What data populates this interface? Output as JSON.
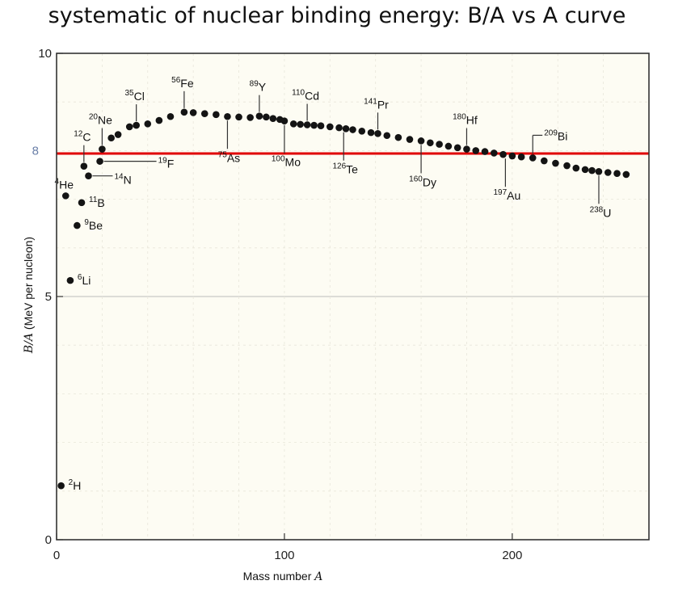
{
  "title": "systematic of nuclear binding energy: B/A vs A curve",
  "chart_data": {
    "type": "scatter",
    "title": "systematic of nuclear binding energy: B/A vs A curve",
    "xlabel_text": "Mass number ",
    "xlabel_var": "A",
    "ylabel_var": "B/A",
    "ylabel_text": " (MeV per nucleon)",
    "xlim": [
      0,
      260
    ],
    "ylim": [
      0,
      10
    ],
    "xticks": [
      0,
      100,
      200
    ],
    "yticks": [
      0,
      5,
      10
    ],
    "highlight_tick": 8,
    "reference_line": {
      "y": 7.94,
      "color": "#e00000"
    },
    "points": [
      {
        "x": 2,
        "y": 1.11
      },
      {
        "x": 4,
        "y": 7.07
      },
      {
        "x": 6,
        "y": 5.33
      },
      {
        "x": 9,
        "y": 6.46
      },
      {
        "x": 11,
        "y": 6.93
      },
      {
        "x": 12,
        "y": 7.68
      },
      {
        "x": 14,
        "y": 7.48
      },
      {
        "x": 19,
        "y": 7.78
      },
      {
        "x": 20,
        "y": 8.03
      },
      {
        "x": 24,
        "y": 8.26
      },
      {
        "x": 27,
        "y": 8.33
      },
      {
        "x": 32,
        "y": 8.49
      },
      {
        "x": 35,
        "y": 8.52
      },
      {
        "x": 40,
        "y": 8.55
      },
      {
        "x": 45,
        "y": 8.62
      },
      {
        "x": 50,
        "y": 8.7
      },
      {
        "x": 56,
        "y": 8.79
      },
      {
        "x": 60,
        "y": 8.78
      },
      {
        "x": 65,
        "y": 8.76
      },
      {
        "x": 70,
        "y": 8.74
      },
      {
        "x": 75,
        "y": 8.7
      },
      {
        "x": 80,
        "y": 8.69
      },
      {
        "x": 85,
        "y": 8.68
      },
      {
        "x": 89,
        "y": 8.71
      },
      {
        "x": 92,
        "y": 8.69
      },
      {
        "x": 95,
        "y": 8.66
      },
      {
        "x": 98,
        "y": 8.64
      },
      {
        "x": 100,
        "y": 8.61
      },
      {
        "x": 104,
        "y": 8.55
      },
      {
        "x": 107,
        "y": 8.54
      },
      {
        "x": 110,
        "y": 8.53
      },
      {
        "x": 113,
        "y": 8.52
      },
      {
        "x": 116,
        "y": 8.51
      },
      {
        "x": 120,
        "y": 8.49
      },
      {
        "x": 124,
        "y": 8.47
      },
      {
        "x": 127,
        "y": 8.45
      },
      {
        "x": 130,
        "y": 8.43
      },
      {
        "x": 134,
        "y": 8.4
      },
      {
        "x": 138,
        "y": 8.37
      },
      {
        "x": 141,
        "y": 8.35
      },
      {
        "x": 145,
        "y": 8.31
      },
      {
        "x": 150,
        "y": 8.27
      },
      {
        "x": 155,
        "y": 8.23
      },
      {
        "x": 160,
        "y": 8.2
      },
      {
        "x": 164,
        "y": 8.16
      },
      {
        "x": 168,
        "y": 8.13
      },
      {
        "x": 172,
        "y": 8.09
      },
      {
        "x": 176,
        "y": 8.06
      },
      {
        "x": 180,
        "y": 8.03
      },
      {
        "x": 184,
        "y": 8.0
      },
      {
        "x": 188,
        "y": 7.98
      },
      {
        "x": 192,
        "y": 7.95
      },
      {
        "x": 196,
        "y": 7.92
      },
      {
        "x": 200,
        "y": 7.89
      },
      {
        "x": 204,
        "y": 7.87
      },
      {
        "x": 209,
        "y": 7.85
      },
      {
        "x": 214,
        "y": 7.79
      },
      {
        "x": 219,
        "y": 7.74
      },
      {
        "x": 224,
        "y": 7.69
      },
      {
        "x": 228,
        "y": 7.64
      },
      {
        "x": 232,
        "y": 7.61
      },
      {
        "x": 235,
        "y": 7.59
      },
      {
        "x": 238,
        "y": 7.57
      },
      {
        "x": 242,
        "y": 7.55
      },
      {
        "x": 246,
        "y": 7.53
      },
      {
        "x": 250,
        "y": 7.51
      }
    ],
    "annotations": [
      {
        "mass": "2",
        "symbol": "H",
        "x": 2,
        "y": 1.11,
        "side": "right"
      },
      {
        "mass": "4",
        "symbol": "He",
        "x": 4,
        "y": 7.07,
        "side": "above"
      },
      {
        "mass": "6",
        "symbol": "Li",
        "x": 6,
        "y": 5.33,
        "side": "right"
      },
      {
        "mass": "9",
        "symbol": "Be",
        "x": 9,
        "y": 6.46,
        "side": "right"
      },
      {
        "mass": "11",
        "symbol": "B",
        "x": 11,
        "y": 6.93,
        "side": "right"
      },
      {
        "mass": "12",
        "symbol": "C",
        "x": 12,
        "y": 7.68,
        "side": "above-leader"
      },
      {
        "mass": "14",
        "symbol": "N",
        "x": 14,
        "y": 7.48,
        "side": "right-leader"
      },
      {
        "mass": "19",
        "symbol": "F",
        "x": 19,
        "y": 7.78,
        "side": "right-leader-long"
      },
      {
        "mass": "20",
        "symbol": "Ne",
        "x": 20,
        "y": 8.03,
        "side": "above-leader"
      },
      {
        "mass": "35",
        "symbol": "Cl",
        "x": 35,
        "y": 8.52,
        "side": "above-leader"
      },
      {
        "mass": "56",
        "symbol": "Fe",
        "x": 56,
        "y": 8.79,
        "side": "above-leader"
      },
      {
        "mass": "75",
        "symbol": "As",
        "x": 75,
        "y": 8.7,
        "side": "below-leader"
      },
      {
        "mass": "89",
        "symbol": "Y",
        "x": 89,
        "y": 8.71,
        "side": "above-leader"
      },
      {
        "mass": "100",
        "symbol": "Mo",
        "x": 100,
        "y": 8.61,
        "side": "below-leader"
      },
      {
        "mass": "110",
        "symbol": "Cd",
        "x": 110,
        "y": 8.53,
        "side": "above-leader"
      },
      {
        "mass": "126",
        "symbol": "Te",
        "x": 126,
        "y": 8.46,
        "side": "below-leader"
      },
      {
        "mass": "141",
        "symbol": "Pr",
        "x": 141,
        "y": 8.35,
        "side": "above-leader"
      },
      {
        "mass": "160",
        "symbol": "Dy",
        "x": 160,
        "y": 8.2,
        "side": "below-leader"
      },
      {
        "mass": "180",
        "symbol": "Hf",
        "x": 180,
        "y": 8.03,
        "side": "above-leader"
      },
      {
        "mass": "197",
        "symbol": "Au",
        "x": 197,
        "y": 7.92,
        "side": "below-leader"
      },
      {
        "mass": "209",
        "symbol": "Bi",
        "x": 209,
        "y": 7.85,
        "side": "above-right-leader"
      },
      {
        "mass": "238",
        "symbol": "U",
        "x": 238,
        "y": 7.57,
        "side": "below-leader"
      }
    ]
  }
}
